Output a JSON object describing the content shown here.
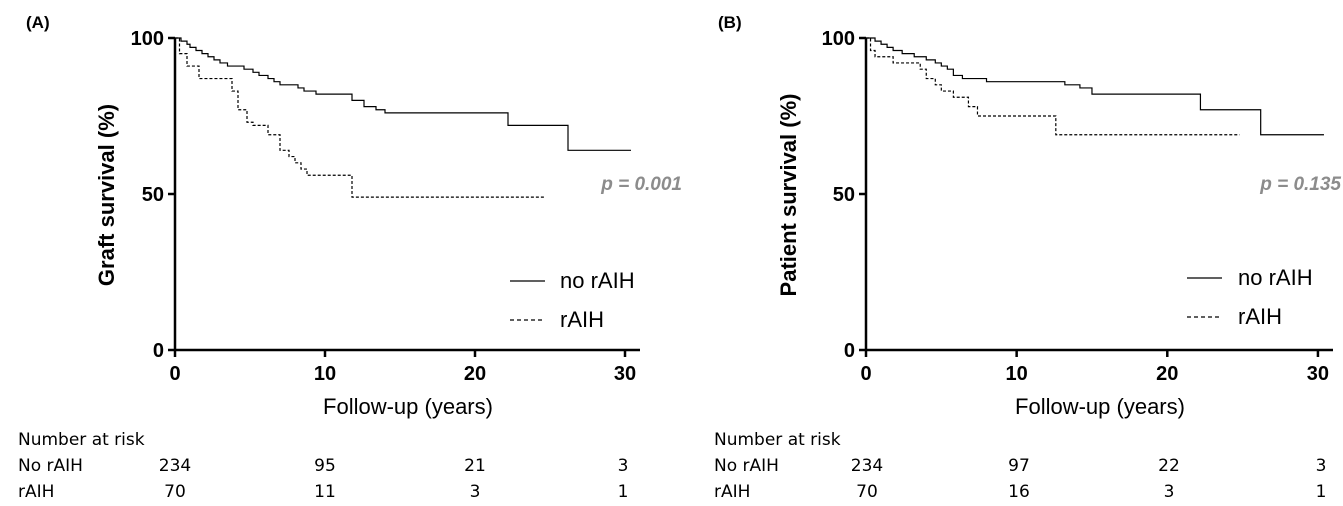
{
  "figure": {
    "panels": [
      {
        "panel_label": "(A)",
        "p_value": "p = 0.001",
        "risk_table": {
          "title": "Number at risk",
          "rows": [
            {
              "label": "No rAIH",
              "values": [
                "234",
                "95",
                "21",
                "3"
              ]
            },
            {
              "label": "rAIH",
              "values": [
                "70",
                "11",
                "3",
                "1"
              ]
            }
          ]
        }
      },
      {
        "panel_label": "(B)",
        "p_value": "p = 0.135",
        "risk_table": {
          "title": "Number at risk",
          "rows": [
            {
              "label": "No rAIH",
              "values": [
                "234",
                "97",
                "22",
                "3"
              ]
            },
            {
              "label": "rAIH",
              "values": [
                "70",
                "16",
                "3",
                "1"
              ]
            }
          ]
        }
      }
    ],
    "colors": {
      "line": "#000000",
      "p_value": "#8c8c8c"
    }
  },
  "chart_data": [
    {
      "type": "line",
      "step": true,
      "xlabel": "Follow-up (years)",
      "ylabel": "Graft survival (%)",
      "xlim": [
        0,
        31
      ],
      "ylim": [
        0,
        100
      ],
      "x_ticks": [
        0,
        10,
        20,
        30
      ],
      "y_ticks": [
        0,
        50,
        100
      ],
      "grid": false,
      "legend_position": "right",
      "series": [
        {
          "name": "no rAIH",
          "style": "solid",
          "points": [
            [
              0,
              100
            ],
            [
              0.4,
              99
            ],
            [
              0.8,
              98
            ],
            [
              1.0,
              97
            ],
            [
              1.4,
              96
            ],
            [
              1.8,
              95
            ],
            [
              2.2,
              94
            ],
            [
              2.6,
              93
            ],
            [
              3.0,
              92
            ],
            [
              3.5,
              91
            ],
            [
              4.6,
              90
            ],
            [
              5.2,
              89
            ],
            [
              5.6,
              88
            ],
            [
              6.2,
              87
            ],
            [
              6.6,
              86
            ],
            [
              7.0,
              85
            ],
            [
              8.2,
              84
            ],
            [
              8.6,
              83
            ],
            [
              9.4,
              82
            ],
            [
              11.8,
              80
            ],
            [
              12.6,
              78
            ],
            [
              13.4,
              77
            ],
            [
              14.0,
              76
            ],
            [
              22.2,
              72
            ],
            [
              26.2,
              64
            ],
            [
              30.4,
              64
            ]
          ]
        },
        {
          "name": "rAIH",
          "style": "dashed",
          "points": [
            [
              0,
              100
            ],
            [
              0.3,
              95
            ],
            [
              0.8,
              91
            ],
            [
              1.6,
              87
            ],
            [
              3.8,
              83
            ],
            [
              4.2,
              77
            ],
            [
              4.8,
              73
            ],
            [
              5.2,
              72
            ],
            [
              6.2,
              69
            ],
            [
              7.0,
              64
            ],
            [
              7.6,
              62
            ],
            [
              8.0,
              60
            ],
            [
              8.4,
              58
            ],
            [
              8.8,
              56
            ],
            [
              11.8,
              49
            ],
            [
              24.6,
              49
            ]
          ]
        }
      ]
    },
    {
      "type": "line",
      "step": true,
      "xlabel": "Follow-up (years)",
      "ylabel": "Patient survival (%)",
      "xlim": [
        0,
        31
      ],
      "ylim": [
        0,
        100
      ],
      "x_ticks": [
        0,
        10,
        20,
        30
      ],
      "y_ticks": [
        0,
        50,
        100
      ],
      "grid": false,
      "legend_position": "right",
      "series": [
        {
          "name": "no rAIH",
          "style": "solid",
          "points": [
            [
              0,
              100
            ],
            [
              0.6,
              99
            ],
            [
              1.0,
              98
            ],
            [
              1.4,
              97
            ],
            [
              1.8,
              96
            ],
            [
              2.4,
              95
            ],
            [
              3.2,
              94
            ],
            [
              4.0,
              93
            ],
            [
              4.6,
              92
            ],
            [
              5.0,
              91
            ],
            [
              5.4,
              90
            ],
            [
              5.8,
              88
            ],
            [
              6.4,
              87
            ],
            [
              8.0,
              86
            ],
            [
              13.2,
              85
            ],
            [
              14.2,
              84
            ],
            [
              15.0,
              82
            ],
            [
              22.2,
              77
            ],
            [
              26.2,
              69
            ],
            [
              30.4,
              69
            ]
          ]
        },
        {
          "name": "rAIH",
          "style": "dashed",
          "points": [
            [
              0,
              100
            ],
            [
              0.3,
              96
            ],
            [
              0.6,
              94
            ],
            [
              1.8,
              92
            ],
            [
              3.6,
              90
            ],
            [
              4.0,
              87
            ],
            [
              4.6,
              85
            ],
            [
              5.0,
              83
            ],
            [
              5.8,
              81
            ],
            [
              6.8,
              78
            ],
            [
              7.4,
              75
            ],
            [
              12.6,
              69
            ],
            [
              24.8,
              69
            ]
          ]
        }
      ]
    }
  ]
}
